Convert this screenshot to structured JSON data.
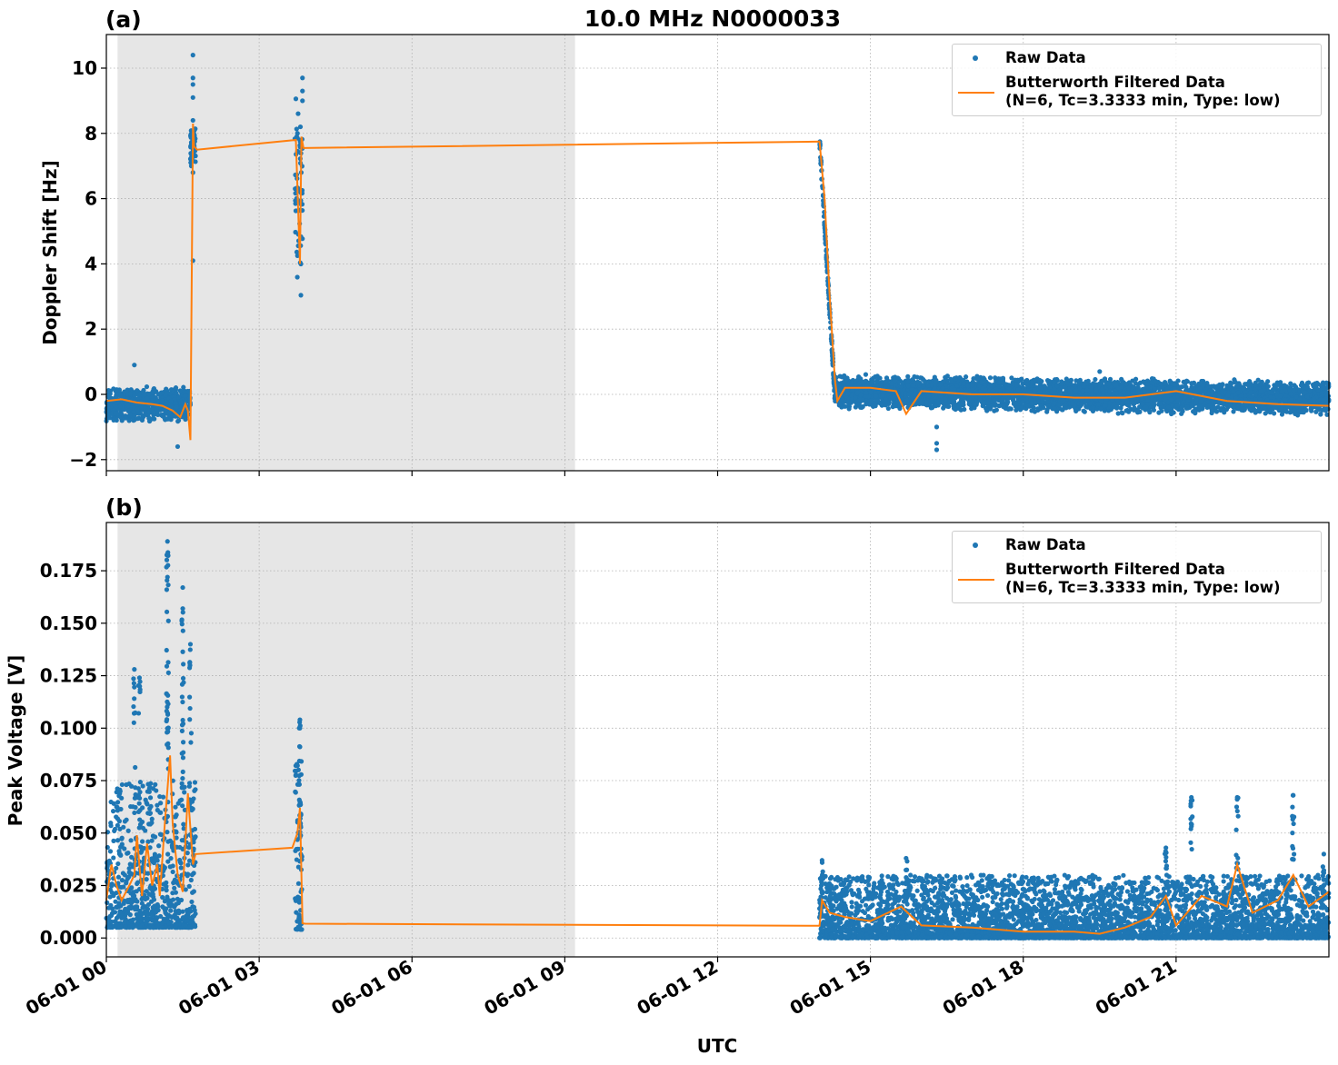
{
  "figure": {
    "title": "10.0 MHz N0000033",
    "xlabel": "UTC",
    "x_ticks": [
      "06-01 00",
      "06-01 03",
      "06-01 06",
      "06-01 09",
      "06-01 12",
      "06-01 15",
      "06-01 18",
      "06-01 21"
    ]
  },
  "colors": {
    "raw": "#1f77b4",
    "filtered": "#ff7f0e",
    "shade": "#e6e6e6",
    "grid": "#b0b0b0"
  },
  "legend": {
    "raw_label": "Raw Data",
    "filtered_label_line1": "Butterworth Filtered Data",
    "filtered_label_line2": "(N=6, Tc=3.3333 min, Type: low)"
  },
  "panels": {
    "a": {
      "label": "(a)",
      "ylabel": "Doppler Shift [Hz]",
      "yticks": [
        "−2",
        "0",
        "2",
        "4",
        "6",
        "8",
        "10"
      ]
    },
    "b": {
      "label": "(b)",
      "ylabel": "Peak Voltage [V]",
      "yticks": [
        "0.000",
        "0.025",
        "0.050",
        "0.075",
        "0.100",
        "0.125",
        "0.150",
        "0.175"
      ]
    }
  },
  "chart_data": [
    {
      "type": "scatter",
      "panel": "(a)",
      "title": "10.0 MHz N0000033",
      "xlabel": "UTC",
      "ylabel": "Doppler Shift [Hz]",
      "xlim_hours": [
        0,
        24
      ],
      "ylim": [
        -2.34,
        11.03
      ],
      "yticks": [
        -2,
        0,
        2,
        4,
        6,
        8,
        10
      ],
      "grid": true,
      "legend_position": "upper right",
      "shaded_region_hours": [
        0.22,
        9.2
      ],
      "series": [
        {
          "name": "Raw Data",
          "style": "dots",
          "segments": [
            {
              "x_hours": [
                0.0,
                1.65
              ],
              "y_mean": -0.3,
              "y_spread": 0.35,
              "outliers": [
                [
                  0.55,
                  0.9
                ],
                [
                  1.4,
                  -1.6
                ]
              ]
            },
            {
              "x_hours": [
                1.65,
                1.75
              ],
              "y_mean": 7.6,
              "y_spread": 0.4,
              "outliers": [
                [
                  1.7,
                  10.4
                ],
                [
                  1.7,
                  9.7
                ],
                [
                  1.7,
                  9.5
                ],
                [
                  1.7,
                  9.1
                ],
                [
                  1.7,
                  8.4
                ],
                [
                  1.7,
                  6.8
                ],
                [
                  1.7,
                  4.1
                ]
              ]
            },
            {
              "x_hours": [
                3.7,
                3.85
              ],
              "y_mean": 6.0,
              "y_spread": 2.0,
              "outliers": [
                [
                  3.85,
                  9.7
                ],
                [
                  3.85,
                  9.3
                ],
                [
                  3.85,
                  9.0
                ]
              ]
            },
            {
              "x_hours": [
                14.0,
                14.3
              ],
              "y_from": 7.8,
              "y_to": 0.0,
              "note": "linear descent"
            },
            {
              "x_hours": [
                14.3,
                24.0
              ],
              "y_mean": 0.0,
              "y_spread": 0.35,
              "outliers": [
                [
                  16.3,
                  -1.7
                ],
                [
                  16.3,
                  -1.5
                ],
                [
                  16.3,
                  -1.0
                ],
                [
                  19.5,
                  0.7
                ]
              ]
            }
          ]
        },
        {
          "name": "Butterworth Filtered Data (N=6, Tc=3.3333 min, Type: low)",
          "style": "line",
          "points": [
            [
              0.0,
              -0.2
            ],
            [
              0.3,
              -0.15
            ],
            [
              0.6,
              -0.25
            ],
            [
              0.9,
              -0.3
            ],
            [
              1.1,
              -0.35
            ],
            [
              1.3,
              -0.5
            ],
            [
              1.45,
              -0.7
            ],
            [
              1.55,
              -0.3
            ],
            [
              1.6,
              -0.5
            ],
            [
              1.65,
              -1.4
            ],
            [
              1.68,
              4.1
            ],
            [
              1.7,
              8.3
            ],
            [
              1.72,
              7.6
            ],
            [
              1.78,
              7.5
            ],
            [
              3.72,
              7.8
            ],
            [
              3.8,
              4.0
            ],
            [
              3.83,
              7.9
            ],
            [
              3.87,
              7.55
            ],
            [
              14.0,
              7.75
            ],
            [
              14.1,
              6.0
            ],
            [
              14.2,
              3.0
            ],
            [
              14.3,
              0.5
            ],
            [
              14.35,
              -0.2
            ],
            [
              14.5,
              0.2
            ],
            [
              15.0,
              0.2
            ],
            [
              15.5,
              0.1
            ],
            [
              15.7,
              -0.6
            ],
            [
              16.0,
              0.1
            ],
            [
              17.0,
              0.0
            ],
            [
              18.0,
              0.0
            ],
            [
              19.0,
              -0.1
            ],
            [
              20.0,
              -0.1
            ],
            [
              21.0,
              0.1
            ],
            [
              22.0,
              -0.2
            ],
            [
              23.0,
              -0.3
            ],
            [
              24.0,
              -0.35
            ]
          ]
        }
      ]
    },
    {
      "type": "scatter",
      "panel": "(b)",
      "xlabel": "UTC",
      "ylabel": "Peak Voltage [V]",
      "xlim_hours": [
        0,
        24
      ],
      "ylim": [
        -0.009,
        0.198
      ],
      "yticks": [
        0.0,
        0.025,
        0.05,
        0.075,
        0.1,
        0.125,
        0.15,
        0.175
      ],
      "grid": true,
      "legend_position": "upper right",
      "shaded_region_hours": [
        0.22,
        9.2
      ],
      "series": [
        {
          "name": "Raw Data",
          "style": "dots",
          "segments": [
            {
              "x_hours": [
                0.0,
                1.75
              ],
              "y_min": 0.005,
              "y_max": 0.075,
              "peaks": [
                [
                  0.55,
                  0.128
                ],
                [
                  0.65,
                  0.124
                ],
                [
                  1.2,
                  0.189
                ],
                [
                  1.2,
                  0.183
                ],
                [
                  1.2,
                  0.172
                ],
                [
                  1.5,
                  0.167
                ],
                [
                  1.5,
                  0.157
                ],
                [
                  1.65,
                  0.14
                ]
              ]
            },
            {
              "x_hours": [
                3.7,
                3.85
              ],
              "y_min": 0.004,
              "y_max": 0.085,
              "peaks": [
                [
                  3.8,
                  0.104
                ],
                [
                  3.8,
                  0.1
                ]
              ]
            },
            {
              "x_hours": [
                14.0,
                24.0
              ],
              "y_min": 0.0,
              "y_max": 0.03,
              "peaks": [
                [
                  14.05,
                  0.037
                ],
                [
                  15.7,
                  0.038
                ],
                [
                  17.8,
                  0.025
                ],
                [
                  20.8,
                  0.043
                ],
                [
                  21.3,
                  0.067
                ],
                [
                  22.2,
                  0.067
                ],
                [
                  23.3,
                  0.068
                ],
                [
                  23.9,
                  0.04
                ]
              ]
            }
          ]
        },
        {
          "name": "Butterworth Filtered Data (N=6, Tc=3.3333 min, Type: low)",
          "style": "line",
          "points": [
            [
              0.0,
              0.018
            ],
            [
              0.1,
              0.035
            ],
            [
              0.2,
              0.025
            ],
            [
              0.3,
              0.018
            ],
            [
              0.45,
              0.025
            ],
            [
              0.55,
              0.03
            ],
            [
              0.6,
              0.049
            ],
            [
              0.7,
              0.02
            ],
            [
              0.8,
              0.045
            ],
            [
              0.9,
              0.025
            ],
            [
              1.0,
              0.035
            ],
            [
              1.05,
              0.02
            ],
            [
              1.15,
              0.055
            ],
            [
              1.25,
              0.087
            ],
            [
              1.3,
              0.055
            ],
            [
              1.4,
              0.03
            ],
            [
              1.5,
              0.022
            ],
            [
              1.6,
              0.069
            ],
            [
              1.7,
              0.035
            ],
            [
              1.75,
              0.04
            ],
            [
              3.65,
              0.043
            ],
            [
              3.75,
              0.05
            ],
            [
              3.8,
              0.062
            ],
            [
              3.85,
              0.007
            ],
            [
              3.9,
              0.0068
            ],
            [
              14.0,
              0.0058
            ],
            [
              14.05,
              0.018
            ],
            [
              14.2,
              0.012
            ],
            [
              14.5,
              0.01
            ],
            [
              15.0,
              0.008
            ],
            [
              15.6,
              0.015
            ],
            [
              16.0,
              0.006
            ],
            [
              17.0,
              0.005
            ],
            [
              18.0,
              0.003
            ],
            [
              19.0,
              0.003
            ],
            [
              19.5,
              0.002
            ],
            [
              20.0,
              0.005
            ],
            [
              20.5,
              0.01
            ],
            [
              20.8,
              0.02
            ],
            [
              21.0,
              0.006
            ],
            [
              21.5,
              0.02
            ],
            [
              22.0,
              0.015
            ],
            [
              22.2,
              0.035
            ],
            [
              22.5,
              0.012
            ],
            [
              23.0,
              0.018
            ],
            [
              23.3,
              0.03
            ],
            [
              23.6,
              0.015
            ],
            [
              24.0,
              0.022
            ]
          ]
        }
      ]
    }
  ]
}
